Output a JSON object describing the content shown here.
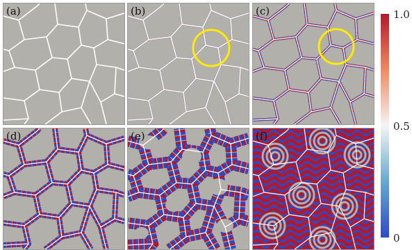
{
  "panels": [
    {
      "label": "(a)"
    },
    {
      "label": "(b)"
    },
    {
      "label": "(c)"
    },
    {
      "label": "(d)"
    },
    {
      "label": "(e)"
    },
    {
      "label": "(f)"
    }
  ],
  "colorbar": {
    "max_label": "1.0",
    "mid_label": "0.5",
    "min_label": "0",
    "colors": [
      "#b2182b",
      "#f4f4f4",
      "#2d4ac6"
    ]
  },
  "highlight_color": "#ffea00"
}
